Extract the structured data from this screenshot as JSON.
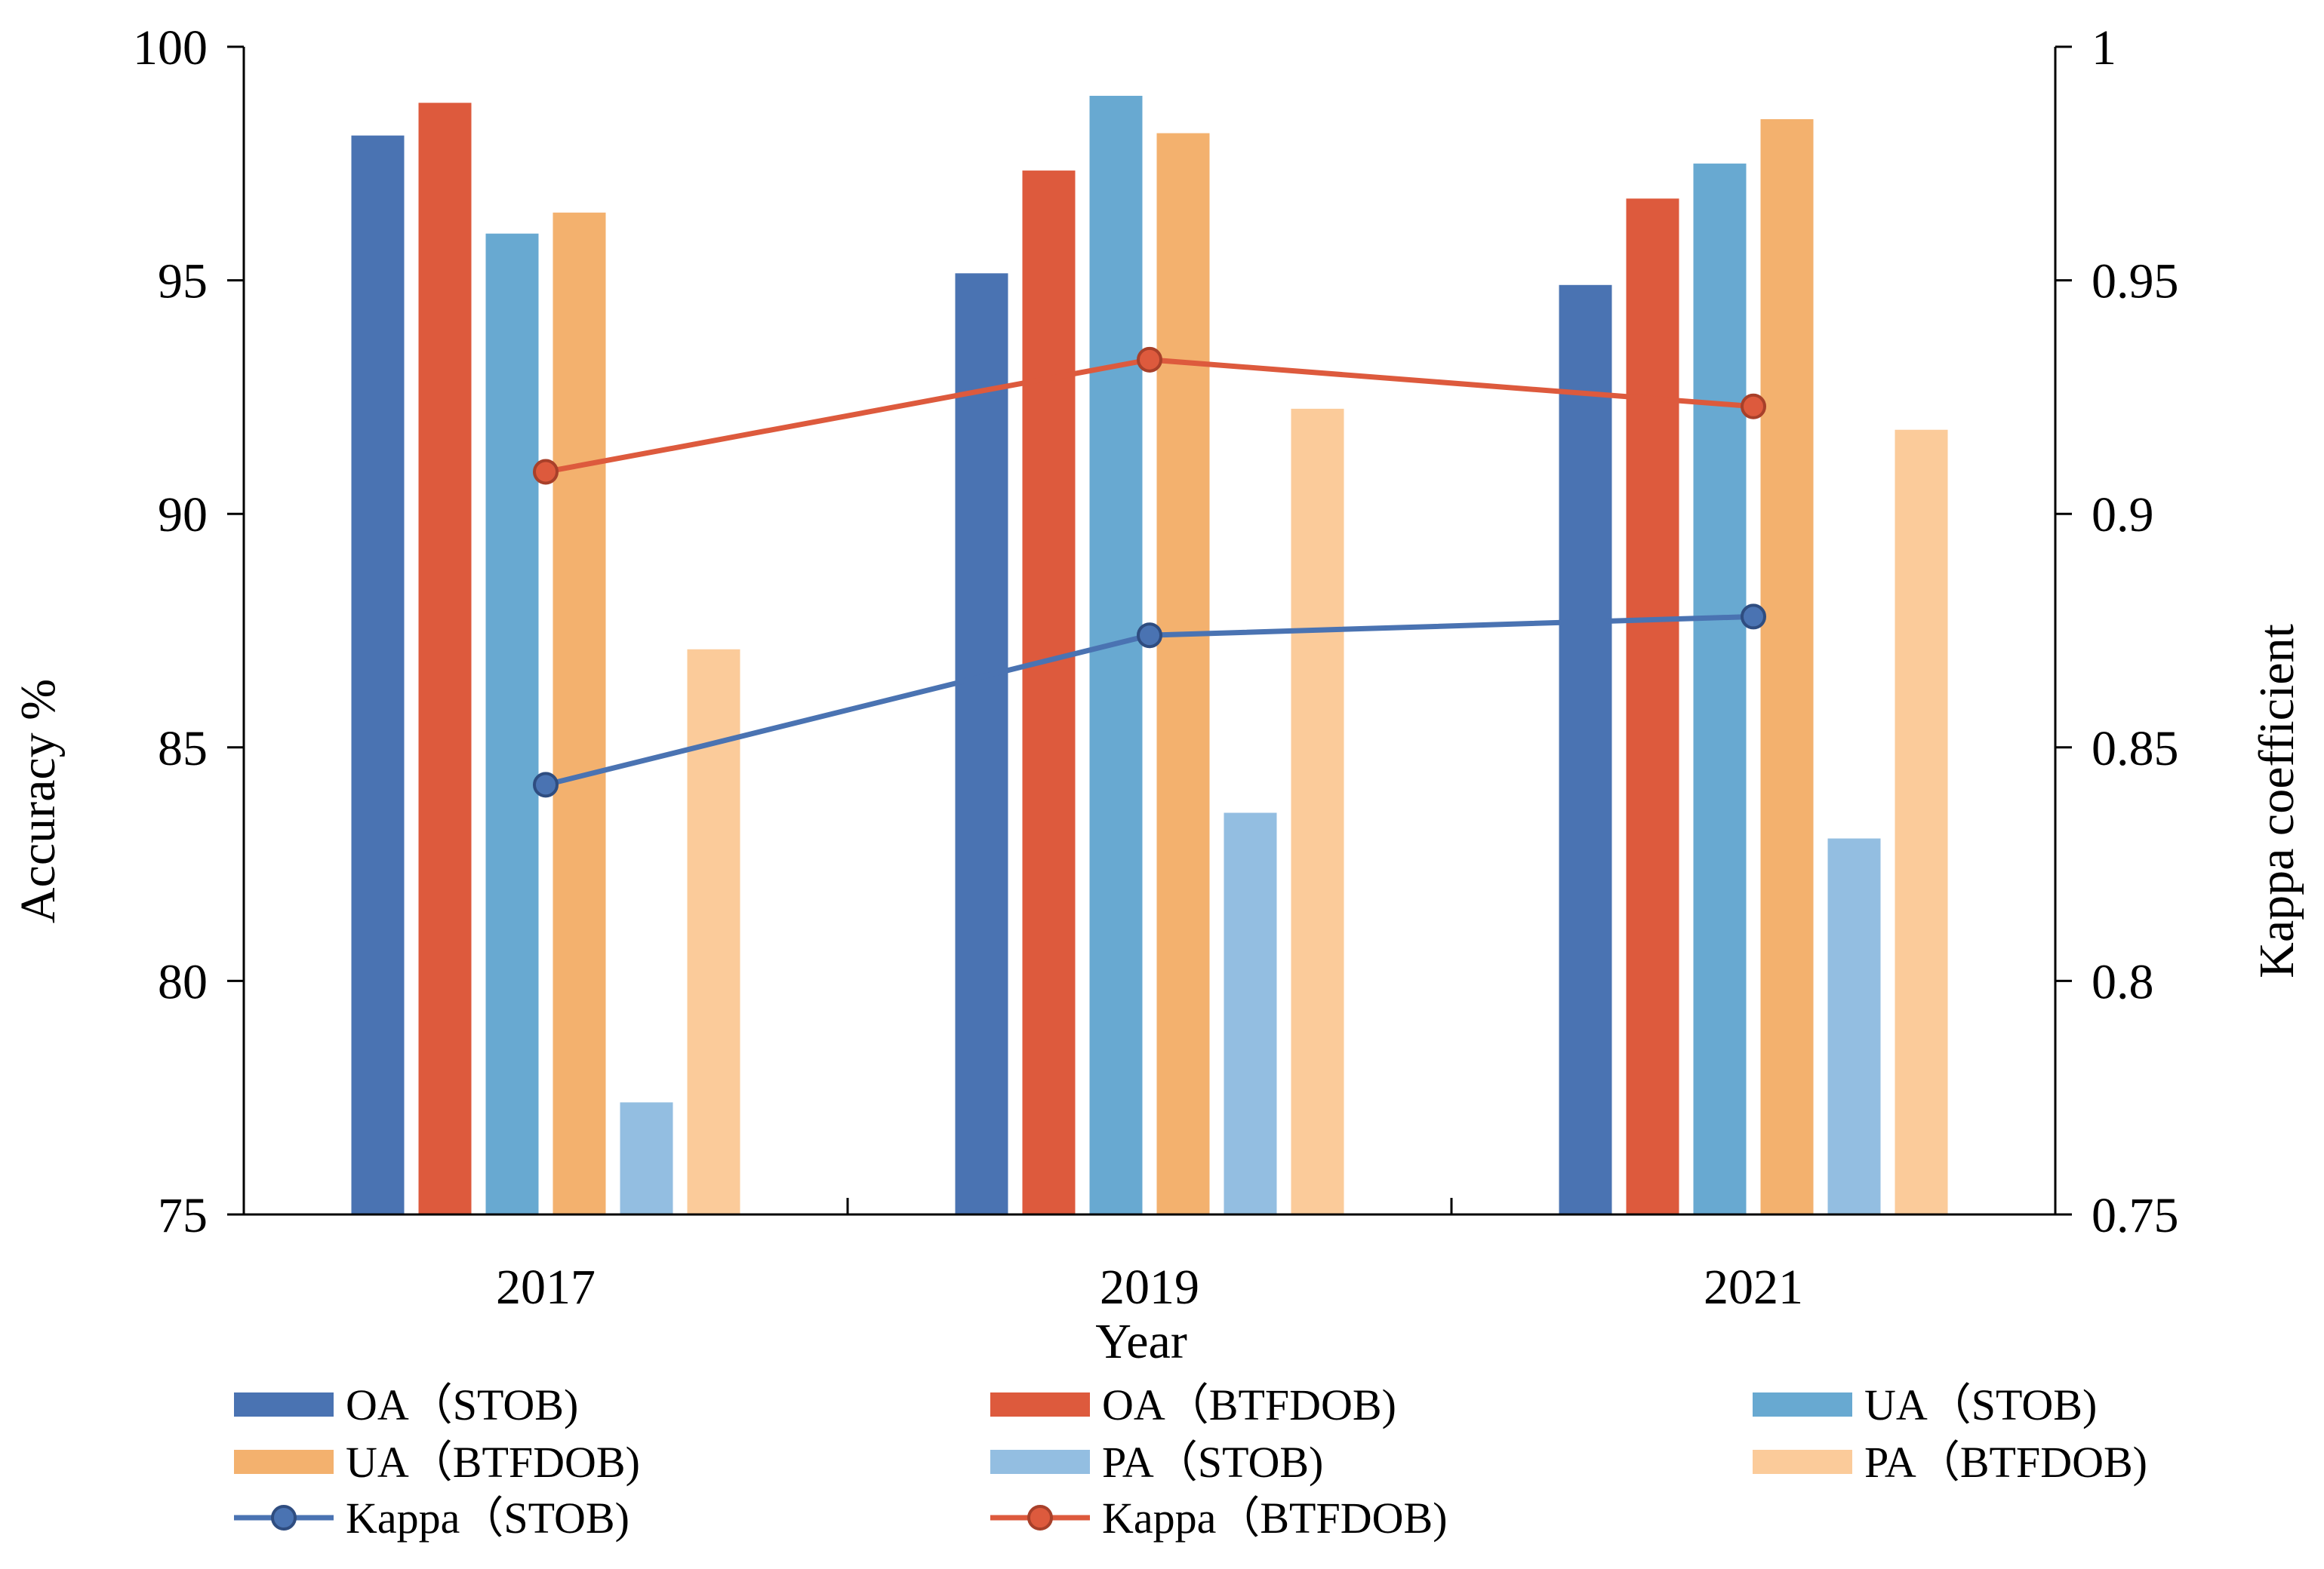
{
  "chart_data": {
    "type": "bar",
    "xlabel": "Year",
    "ylabel": "Accuracy %",
    "y2label": "Kappa coefficient",
    "categories": [
      "2017",
      "2019",
      "2021"
    ],
    "ylim": [
      75,
      100
    ],
    "yticks": [
      75,
      80,
      85,
      90,
      95,
      100
    ],
    "y2lim": [
      0.75,
      1
    ],
    "y2ticks": [
      "0.75",
      "0.8",
      "0.85",
      "0.9",
      "0.95",
      "1"
    ],
    "series": [
      {
        "name": "OA（STOB)",
        "kind": "bar",
        "color": "#4A73B2",
        "values": [
          98.1,
          95.15,
          94.9
        ]
      },
      {
        "name": "OA（BTFDOB)",
        "kind": "bar",
        "color": "#DD5A3D",
        "values": [
          98.8,
          97.35,
          96.75
        ]
      },
      {
        "name": "UA（STOB)",
        "kind": "bar",
        "color": "#68A9D1",
        "values": [
          96.0,
          98.95,
          97.5
        ]
      },
      {
        "name": "UA（BTFDOB)",
        "kind": "bar",
        "color": "#F3B16E",
        "values": [
          96.45,
          98.15,
          98.45
        ]
      },
      {
        "name": "PA（STOB)",
        "kind": "bar",
        "color": "#93BEE1",
        "values": [
          77.4,
          83.6,
          83.05
        ]
      },
      {
        "name": "PA（BTFDOB)",
        "kind": "bar",
        "color": "#FBCB9A",
        "values": [
          87.1,
          92.25,
          91.8
        ]
      },
      {
        "name": "Kappa（STOB)",
        "kind": "line",
        "axis": "right",
        "color": "#4A73B2",
        "values": [
          0.842,
          0.874,
          0.878
        ]
      },
      {
        "name": "Kappa（BTFDOB)",
        "kind": "line",
        "axis": "right",
        "color": "#DD5A3D",
        "values": [
          0.909,
          0.933,
          0.923
        ]
      }
    ],
    "legend_position": "bottom"
  }
}
